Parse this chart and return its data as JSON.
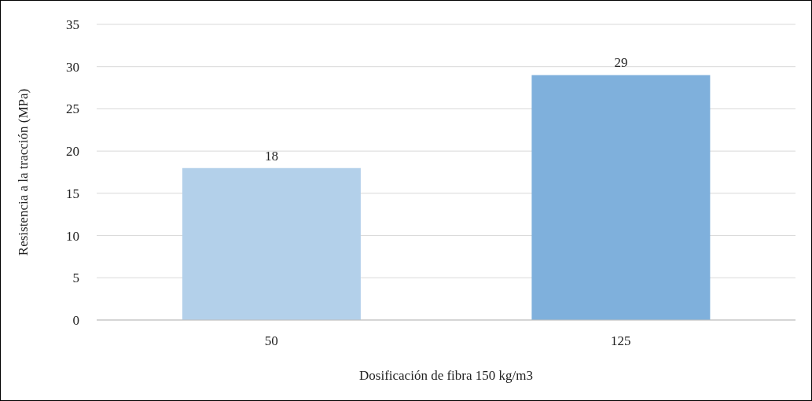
{
  "chart_data": {
    "type": "bar",
    "xlabel": "Dosificación de fibra 150 kg/m3",
    "ylabel": "Resistencia a la tracción (MPa)",
    "categories": [
      "50",
      "125"
    ],
    "values": [
      18,
      29
    ],
    "colors": [
      "#b3d0ea",
      "#7fb0dc"
    ],
    "ylim": [
      0,
      35
    ],
    "yticks": [
      0,
      5,
      10,
      15,
      20,
      25,
      30,
      35
    ],
    "grid": "y",
    "data_labels": true
  }
}
